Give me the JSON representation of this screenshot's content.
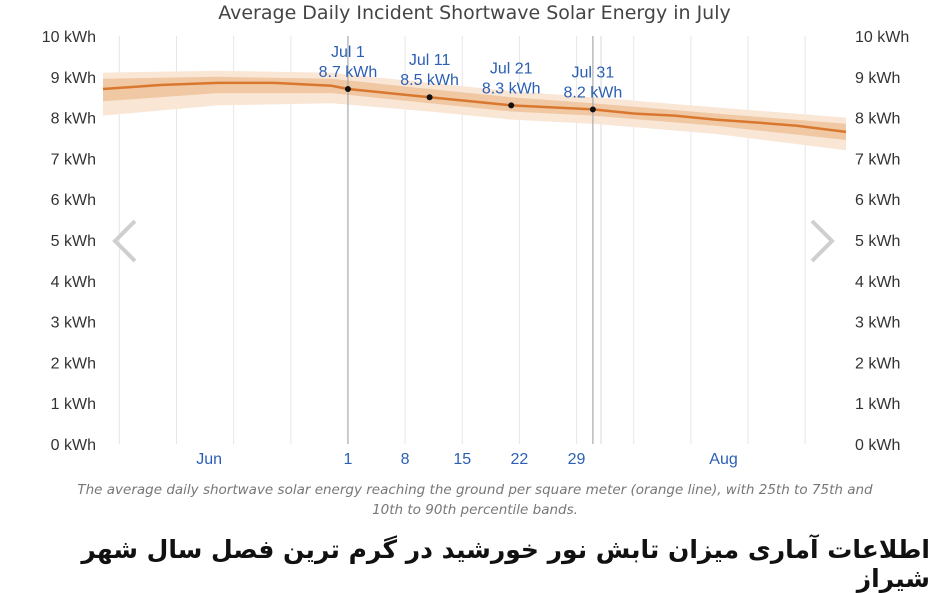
{
  "chart_data": {
    "type": "line",
    "title": "Average Daily Incident Shortwave Solar Energy in July",
    "unit": "kWh",
    "y_ticks": [
      0,
      1,
      2,
      3,
      4,
      5,
      6,
      7,
      8,
      9,
      10
    ],
    "ylim": [
      0,
      10
    ],
    "x_ticks": [
      {
        "day": -16,
        "label": "Jun",
        "type": "month"
      },
      {
        "day": 1,
        "label": "1",
        "type": "day"
      },
      {
        "day": 8,
        "label": "8",
        "type": "day"
      },
      {
        "day": 15,
        "label": "15",
        "type": "day"
      },
      {
        "day": 22,
        "label": "22",
        "type": "day"
      },
      {
        "day": 29,
        "label": "29",
        "type": "day"
      },
      {
        "day": 47,
        "label": "Aug",
        "type": "month"
      }
    ],
    "xlim": [
      -29,
      62
    ],
    "month_boundaries": [
      -30,
      32
    ],
    "series": [
      {
        "name": "median",
        "color": "#d9772f",
        "x": [
          -29,
          -22,
          -15,
          -8,
          -1,
          1,
          6,
          11,
          16,
          21,
          26,
          31,
          36,
          41,
          46,
          51,
          56,
          62
        ],
        "y": [
          8.7,
          8.8,
          8.85,
          8.85,
          8.78,
          8.7,
          8.6,
          8.5,
          8.4,
          8.3,
          8.25,
          8.2,
          8.1,
          8.05,
          7.95,
          7.88,
          7.8,
          7.65
        ]
      },
      {
        "name": "p25-p75 band",
        "color": "#f0c8a4",
        "x": [
          -29,
          -15,
          -1,
          11,
          21,
          31,
          46,
          62
        ],
        "low": [
          8.4,
          8.6,
          8.6,
          8.35,
          8.15,
          8.05,
          7.8,
          7.45
        ],
        "high": [
          8.95,
          9.0,
          8.95,
          8.7,
          8.5,
          8.35,
          8.1,
          7.85
        ]
      },
      {
        "name": "p10-p90 band",
        "color": "#f9e6d5",
        "x": [
          -29,
          -15,
          -1,
          11,
          21,
          31,
          46,
          62
        ],
        "low": [
          8.05,
          8.3,
          8.35,
          8.15,
          7.95,
          7.85,
          7.6,
          7.2
        ],
        "high": [
          9.1,
          9.15,
          9.1,
          8.85,
          8.65,
          8.5,
          8.25,
          8.0
        ]
      }
    ],
    "highlight_lines": [
      1,
      31
    ],
    "annotations": [
      {
        "day": 1,
        "date": "Jul 1",
        "value": 8.7,
        "value_label": "8.7 kWh"
      },
      {
        "day": 11,
        "date": "Jul 11",
        "value": 8.5,
        "value_label": "8.5 kWh"
      },
      {
        "day": 21,
        "date": "Jul 21",
        "value": 8.3,
        "value_label": "8.3 kWh"
      },
      {
        "day": 31,
        "date": "Jul 31",
        "value": 8.2,
        "value_label": "8.2 kWh"
      }
    ],
    "colors": {
      "median": "#d9772f",
      "band_inner": "#f0c8a4",
      "band_outer": "#f9e6d5",
      "annotation_text": "#2b5fb3",
      "grid": "#e6e6e6",
      "highlight": "#aaaaaa",
      "axis_text": "#333333",
      "arrow": "#cfcfcf"
    }
  },
  "caption": "The average daily shortwave solar energy reaching the ground per square meter (orange line), with 25th to 75th and 10th to 90th percentile bands.",
  "footer_title": "اطلاعات آماری میزان تابش نور خورشید در گرم ترین فصل سال شهر شیراز",
  "navigation": {
    "prev_icon": "chevron-left-icon",
    "next_icon": "chevron-right-icon"
  }
}
